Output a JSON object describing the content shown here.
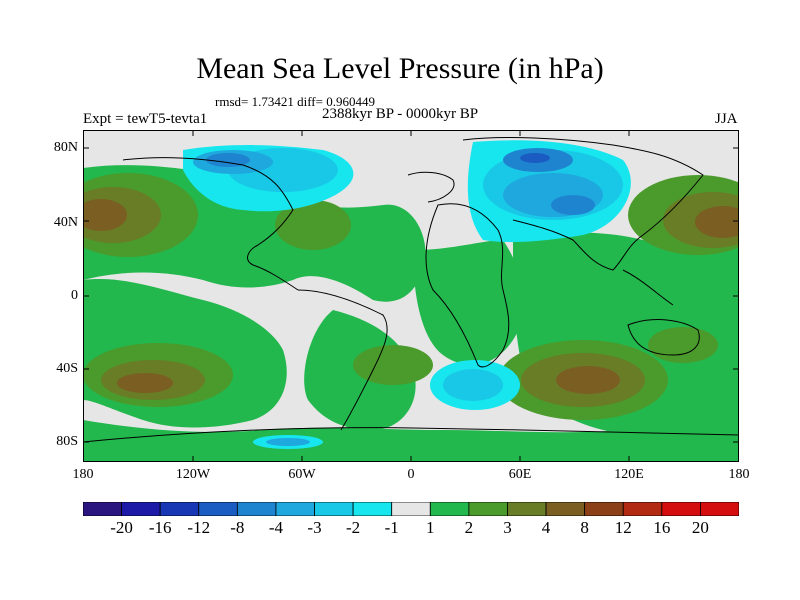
{
  "plot": {
    "title": "Mean Sea Level Pressure (in hPa)",
    "stats": "rmsd= 1.73421  diff= 0.960449",
    "experiment": "Expt = tewT5-tevta1",
    "period": "2388kyr BP - 0000kyr BP",
    "season": "JJA"
  },
  "axes": {
    "lat_labels": [
      "80N",
      "40N",
      "0",
      "40S",
      "80S"
    ],
    "lon_labels": [
      "180",
      "120W",
      "60W",
      "0",
      "60E",
      "120E",
      "180"
    ]
  },
  "colorbar": {
    "labels": [
      "-20",
      "-16",
      "-12",
      "-8",
      "-4",
      "-3",
      "-2",
      "-1",
      "1",
      "2",
      "3",
      "4",
      "8",
      "12",
      "16",
      "20"
    ],
    "colors": [
      "#2b1680",
      "#1c1aa6",
      "#1737b4",
      "#1b5cc2",
      "#1f84cf",
      "#1fa8de",
      "#19c8e6",
      "#17e6ee",
      "#e6e6e6",
      "#23b84d",
      "#4b9a2c",
      "#687d26",
      "#7a5e22",
      "#8c4018",
      "#b22a12",
      "#d40e0e"
    ]
  },
  "map_palette": {
    "ocean_neutral": "#e6e6e6",
    "positive_1_2": "#23b84d",
    "positive_2_3": "#4b9a2c",
    "positive_3_4": "#687d26",
    "positive_4_8": "#7a5e22",
    "negative_1_2": "#17e6ee",
    "negative_2_3": "#19c8e6",
    "negative_3_4": "#1fa8de",
    "negative_4_8": "#1f84cf",
    "negative_8_12": "#1b5cc2",
    "negative_12_16": "#1737b4"
  }
}
